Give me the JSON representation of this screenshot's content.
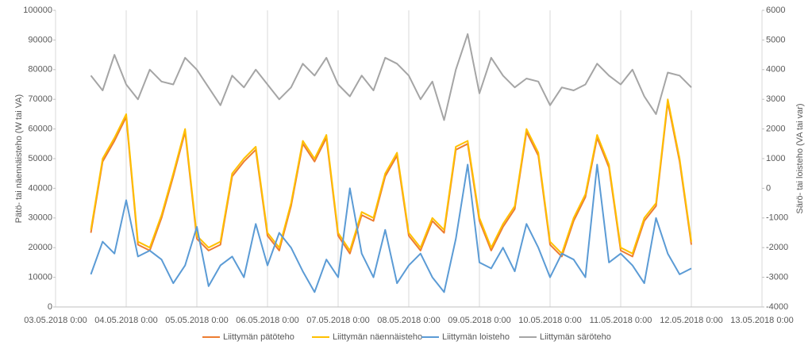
{
  "chart_data": {
    "type": "line",
    "ylabel": "Pätö- tai näennäisteho (W tai VA)",
    "y2label": "Särö- tai loisteho (VA tai var)",
    "x": [
      "03.05.2018 12:00",
      "03.05.2018 16:00",
      "03.05.2018 20:00",
      "04.05.2018 0:00",
      "04.05.2018 4:00",
      "04.05.2018 8:00",
      "04.05.2018 12:00",
      "04.05.2018 16:00",
      "04.05.2018 20:00",
      "05.05.2018 0:00",
      "05.05.2018 4:00",
      "05.05.2018 8:00",
      "05.05.2018 12:00",
      "05.05.2018 16:00",
      "05.05.2018 20:00",
      "06.05.2018 0:00",
      "06.05.2018 4:00",
      "06.05.2018 8:00",
      "06.05.2018 12:00",
      "06.05.2018 16:00",
      "06.05.2018 20:00",
      "07.05.2018 0:00",
      "07.05.2018 4:00",
      "07.05.2018 8:00",
      "07.05.2018 12:00",
      "07.05.2018 16:00",
      "07.05.2018 20:00",
      "08.05.2018 0:00",
      "08.05.2018 4:00",
      "08.05.2018 8:00",
      "08.05.2018 12:00",
      "08.05.2018 16:00",
      "08.05.2018 20:00",
      "09.05.2018 0:00",
      "09.05.2018 4:00",
      "09.05.2018 8:00",
      "09.05.2018 12:00",
      "09.05.2018 16:00",
      "09.05.2018 20:00",
      "10.05.2018 0:00",
      "10.05.2018 4:00",
      "10.05.2018 8:00",
      "10.05.2018 12:00",
      "10.05.2018 16:00",
      "10.05.2018 20:00",
      "11.05.2018 0:00",
      "11.05.2018 4:00",
      "11.05.2018 8:00",
      "11.05.2018 12:00",
      "11.05.2018 16:00",
      "11.05.2018 20:00",
      "12.05.2018 0:00"
    ],
    "series": [
      {
        "name": "Liittymän pätöteho",
        "color": "#ED7D31",
        "axis": "y",
        "values": [
          25000,
          49000,
          56000,
          64000,
          21000,
          19000,
          30000,
          44000,
          59000,
          23000,
          19000,
          21000,
          44000,
          49000,
          53000,
          24000,
          19000,
          34000,
          55000,
          49000,
          57000,
          24000,
          18000,
          31000,
          29000,
          44000,
          51000,
          24000,
          19000,
          29000,
          25000,
          53000,
          55000,
          29000,
          19000,
          27000,
          33000,
          59000,
          51000,
          21000,
          17000,
          29000,
          37000,
          57000,
          47000,
          19000,
          17000,
          29000,
          34000,
          69000,
          49000,
          21000
        ]
      },
      {
        "name": "Liittymän näennäisteho",
        "color": "#FFC000",
        "axis": "y",
        "values": [
          26000,
          50000,
          57000,
          65000,
          22000,
          20000,
          31000,
          45000,
          60000,
          24000,
          20000,
          22000,
          45000,
          50000,
          54000,
          25000,
          20000,
          35000,
          56000,
          50000,
          58000,
          25000,
          19000,
          32000,
          30000,
          45000,
          52000,
          25000,
          20000,
          30000,
          26000,
          54000,
          56000,
          30000,
          20000,
          28000,
          34000,
          60000,
          52000,
          22000,
          18000,
          30000,
          38000,
          58000,
          48000,
          20000,
          18000,
          30000,
          35000,
          70000,
          50000,
          22000
        ]
      },
      {
        "name": "Liittymän loisteho",
        "color": "#5B9BD5",
        "axis": "y",
        "values": [
          11000,
          22000,
          18000,
          36000,
          17000,
          19000,
          16000,
          8000,
          14000,
          27000,
          7000,
          14000,
          17000,
          10000,
          28000,
          14000,
          25000,
          20000,
          12000,
          5000,
          16000,
          10000,
          40000,
          18000,
          10000,
          26000,
          8000,
          14000,
          18000,
          10000,
          5000,
          23000,
          48000,
          15000,
          13000,
          20000,
          12000,
          28000,
          20000,
          10000,
          18000,
          16000,
          10000,
          48000,
          15000,
          18000,
          14000,
          8000,
          30000,
          18000,
          11000,
          13000
        ]
      },
      {
        "name": "Liittymän säröteho",
        "color": "#A5A5A5",
        "axis": "y2",
        "values": [
          3800,
          3300,
          4500,
          3500,
          3000,
          4000,
          3600,
          3500,
          4400,
          4000,
          3400,
          2800,
          3800,
          3400,
          4000,
          3500,
          3000,
          3400,
          4200,
          3800,
          4400,
          3500,
          3100,
          3800,
          3300,
          4400,
          4200,
          3800,
          3000,
          3600,
          2300,
          4000,
          5200,
          3200,
          4400,
          3800,
          3400,
          3700,
          3600,
          2800,
          3400,
          3300,
          3500,
          4200,
          3800,
          3500,
          4000,
          3100,
          2500,
          3900,
          3800,
          3400
        ]
      }
    ],
    "xlim": [
      "03.05.2018 0:00",
      "13.05.2018 0:00"
    ],
    "xticks": [
      "03.05.2018 0:00",
      "04.05.2018 0:00",
      "05.05.2018 0:00",
      "06.05.2018 0:00",
      "07.05.2018 0:00",
      "08.05.2018 0:00",
      "09.05.2018 0:00",
      "10.05.2018 0:00",
      "11.05.2018 0:00",
      "12.05.2018 0:00",
      "13.05.2018 0:00"
    ],
    "ylim": [
      0,
      100000
    ],
    "yticks": [
      0,
      10000,
      20000,
      30000,
      40000,
      50000,
      60000,
      70000,
      80000,
      90000,
      100000
    ],
    "y2lim": [
      -4000,
      6000
    ],
    "y2ticks": [
      -4000,
      -3000,
      -2000,
      -1000,
      0,
      1000,
      2000,
      3000,
      4000,
      5000,
      6000
    ],
    "grid": "x",
    "legend": "bottom"
  }
}
